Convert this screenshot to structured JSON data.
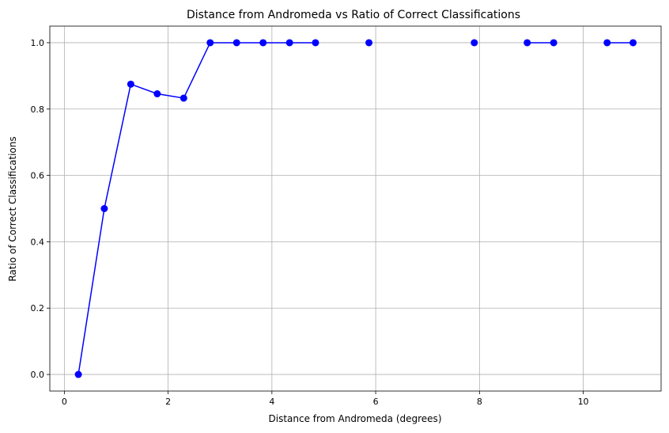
{
  "chart_data": {
    "type": "line",
    "title": "Distance from Andromeda vs Ratio of Correct Classifications",
    "xlabel": "Distance from Andromeda (degrees)",
    "ylabel": "Ratio of Correct Classifications",
    "xlim": [
      -0.28,
      11.5
    ],
    "ylim": [
      -0.05,
      1.05
    ],
    "xticks": [
      0,
      2,
      4,
      6,
      8,
      10
    ],
    "xtick_labels": [
      "0",
      "2",
      "4",
      "6",
      "8",
      "10"
    ],
    "yticks": [
      0.0,
      0.2,
      0.4,
      0.6,
      0.8,
      1.0
    ],
    "ytick_labels": [
      "0.0",
      "0.2",
      "0.4",
      "0.6",
      "0.8",
      "1.0"
    ],
    "grid": true,
    "series": [
      {
        "color": "#0000ff",
        "marker": "circle",
        "segments": [
          [
            {
              "x": 0.27,
              "y": 0.0
            },
            {
              "x": 0.77,
              "y": 0.5
            },
            {
              "x": 1.28,
              "y": 0.875
            },
            {
              "x": 1.79,
              "y": 0.846
            },
            {
              "x": 2.3,
              "y": 0.833
            },
            {
              "x": 2.81,
              "y": 1.0
            },
            {
              "x": 3.32,
              "y": 1.0
            },
            {
              "x": 3.83,
              "y": 1.0
            },
            {
              "x": 4.34,
              "y": 1.0
            },
            {
              "x": 4.84,
              "y": 1.0
            }
          ],
          [
            {
              "x": 5.87,
              "y": 1.0
            }
          ],
          [
            {
              "x": 7.9,
              "y": 1.0
            }
          ],
          [
            {
              "x": 8.92,
              "y": 1.0
            },
            {
              "x": 9.43,
              "y": 1.0
            }
          ],
          [
            {
              "x": 10.46,
              "y": 1.0
            },
            {
              "x": 10.96,
              "y": 1.0
            }
          ]
        ]
      }
    ]
  }
}
